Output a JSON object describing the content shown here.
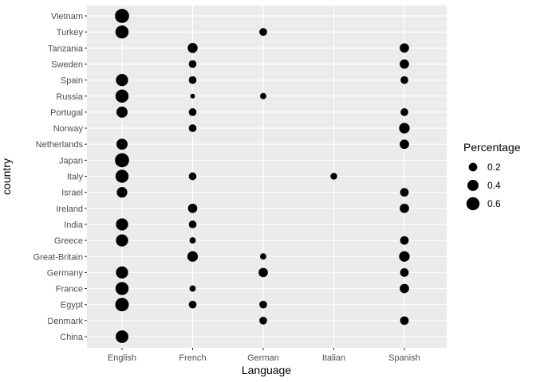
{
  "chart_data": {
    "type": "scatter",
    "xlabel": "Language",
    "ylabel": "country",
    "x_categories": [
      "English",
      "French",
      "German",
      "Italian",
      "Spanish"
    ],
    "y_categories": [
      "China",
      "Denmark",
      "Egypt",
      "France",
      "Germany",
      "Great-Britain",
      "Greece",
      "India",
      "Ireland",
      "Israel",
      "Italy",
      "Japan",
      "Netherlands",
      "Norway",
      "Portugal",
      "Russia",
      "Spain",
      "Sweden",
      "Tanzania",
      "Turkey",
      "Vietnam"
    ],
    "size_variable": "Percentage",
    "size_range": [
      0,
      0.75
    ],
    "legend": {
      "title": "Percentage",
      "position": "right",
      "entries": [
        {
          "label": "0.2",
          "value": 0.2
        },
        {
          "label": "0.4",
          "value": 0.4
        },
        {
          "label": "0.6",
          "value": 0.6
        }
      ]
    },
    "points": [
      {
        "country": "Vietnam",
        "language": "English",
        "percentage": 0.72
      },
      {
        "country": "Turkey",
        "language": "English",
        "percentage": 0.6
      },
      {
        "country": "Turkey",
        "language": "German",
        "percentage": 0.15
      },
      {
        "country": "Tanzania",
        "language": "French",
        "percentage": 0.3
      },
      {
        "country": "Tanzania",
        "language": "Spanish",
        "percentage": 0.25
      },
      {
        "country": "Sweden",
        "language": "French",
        "percentage": 0.15
      },
      {
        "country": "Sweden",
        "language": "Spanish",
        "percentage": 0.25
      },
      {
        "country": "Spain",
        "language": "English",
        "percentage": 0.5
      },
      {
        "country": "Spain",
        "language": "French",
        "percentage": 0.15
      },
      {
        "country": "Spain",
        "language": "Spanish",
        "percentage": 0.15
      },
      {
        "country": "Russia",
        "language": "English",
        "percentage": 0.6
      },
      {
        "country": "Russia",
        "language": "French",
        "percentage": 0.03
      },
      {
        "country": "Russia",
        "language": "German",
        "percentage": 0.08
      },
      {
        "country": "Portugal",
        "language": "English",
        "percentage": 0.4
      },
      {
        "country": "Portugal",
        "language": "French",
        "percentage": 0.15
      },
      {
        "country": "Portugal",
        "language": "Spanish",
        "percentage": 0.15
      },
      {
        "country": "Norway",
        "language": "French",
        "percentage": 0.15
      },
      {
        "country": "Norway",
        "language": "Spanish",
        "percentage": 0.35
      },
      {
        "country": "Netherlands",
        "language": "English",
        "percentage": 0.4
      },
      {
        "country": "Netherlands",
        "language": "Spanish",
        "percentage": 0.25
      },
      {
        "country": "Japan",
        "language": "English",
        "percentage": 0.72
      },
      {
        "country": "Italy",
        "language": "English",
        "percentage": 0.6
      },
      {
        "country": "Italy",
        "language": "French",
        "percentage": 0.15
      },
      {
        "country": "Italy",
        "language": "Italian",
        "percentage": 0.1
      },
      {
        "country": "Israel",
        "language": "English",
        "percentage": 0.35
      },
      {
        "country": "Israel",
        "language": "Spanish",
        "percentage": 0.2
      },
      {
        "country": "Ireland",
        "language": "French",
        "percentage": 0.25
      },
      {
        "country": "Ireland",
        "language": "Spanish",
        "percentage": 0.25
      },
      {
        "country": "India",
        "language": "English",
        "percentage": 0.5
      },
      {
        "country": "India",
        "language": "French",
        "percentage": 0.15
      },
      {
        "country": "Greece",
        "language": "English",
        "percentage": 0.5
      },
      {
        "country": "Greece",
        "language": "French",
        "percentage": 0.08
      },
      {
        "country": "Greece",
        "language": "Spanish",
        "percentage": 0.2
      },
      {
        "country": "Great-Britain",
        "language": "French",
        "percentage": 0.35
      },
      {
        "country": "Great-Britain",
        "language": "German",
        "percentage": 0.08
      },
      {
        "country": "Great-Britain",
        "language": "Spanish",
        "percentage": 0.35
      },
      {
        "country": "Germany",
        "language": "English",
        "percentage": 0.5
      },
      {
        "country": "Germany",
        "language": "German",
        "percentage": 0.25
      },
      {
        "country": "Germany",
        "language": "Spanish",
        "percentage": 0.2
      },
      {
        "country": "France",
        "language": "English",
        "percentage": 0.6
      },
      {
        "country": "France",
        "language": "French",
        "percentage": 0.08
      },
      {
        "country": "France",
        "language": "Spanish",
        "percentage": 0.25
      },
      {
        "country": "Egypt",
        "language": "English",
        "percentage": 0.65
      },
      {
        "country": "Egypt",
        "language": "French",
        "percentage": 0.15
      },
      {
        "country": "Egypt",
        "language": "German",
        "percentage": 0.15
      },
      {
        "country": "Denmark",
        "language": "German",
        "percentage": 0.15
      },
      {
        "country": "Denmark",
        "language": "Spanish",
        "percentage": 0.2
      },
      {
        "country": "China",
        "language": "English",
        "percentage": 0.55
      }
    ],
    "colors": {
      "panel_background": "#ebebeb",
      "grid_major": "#ffffff",
      "point": "#000000",
      "tick_label": "#4d4d4d",
      "tick_mark": "#333333"
    }
  }
}
